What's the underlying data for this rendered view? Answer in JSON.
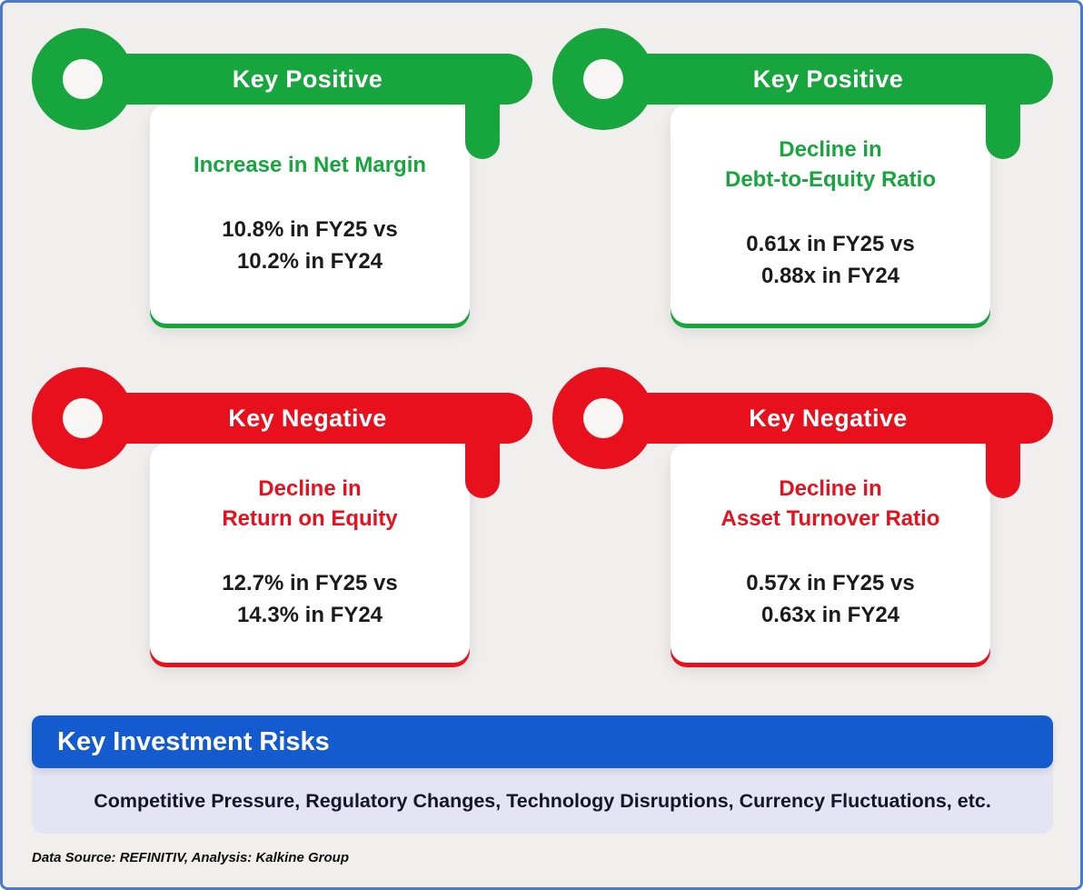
{
  "keys": [
    {
      "sentiment": "positive",
      "label": "Key Positive",
      "title": "Increase in Net Margin",
      "values": "10.8% in FY25 vs\n10.2% in FY24"
    },
    {
      "sentiment": "positive",
      "label": "Key Positive",
      "title": "Decline in\nDebt-to-Equity Ratio",
      "values": "0.61x in FY25 vs\n0.88x in FY24"
    },
    {
      "sentiment": "negative",
      "label": "Key Negative",
      "title": "Decline in\nReturn on Equity",
      "values": "12.7% in FY25 vs\n14.3% in FY24"
    },
    {
      "sentiment": "negative",
      "label": "Key Negative",
      "title": "Decline in\nAsset Turnover Ratio",
      "values": "0.57x in FY25 vs\n0.63x in FY24"
    }
  ],
  "risks": {
    "header": "Key Investment Risks",
    "body": "Competitive Pressure, Regulatory Changes, Technology Disruptions, Currency Fluctuations, etc."
  },
  "footer": "Data Source: REFINITIV, Analysis: Kalkine Group",
  "colors": {
    "positive": "#17a63e",
    "negative": "#e8101c",
    "header_blue": "#155bd0",
    "risks_bg": "#e4e4f4",
    "background": "#f0efee",
    "border": "#4d7ac8"
  }
}
